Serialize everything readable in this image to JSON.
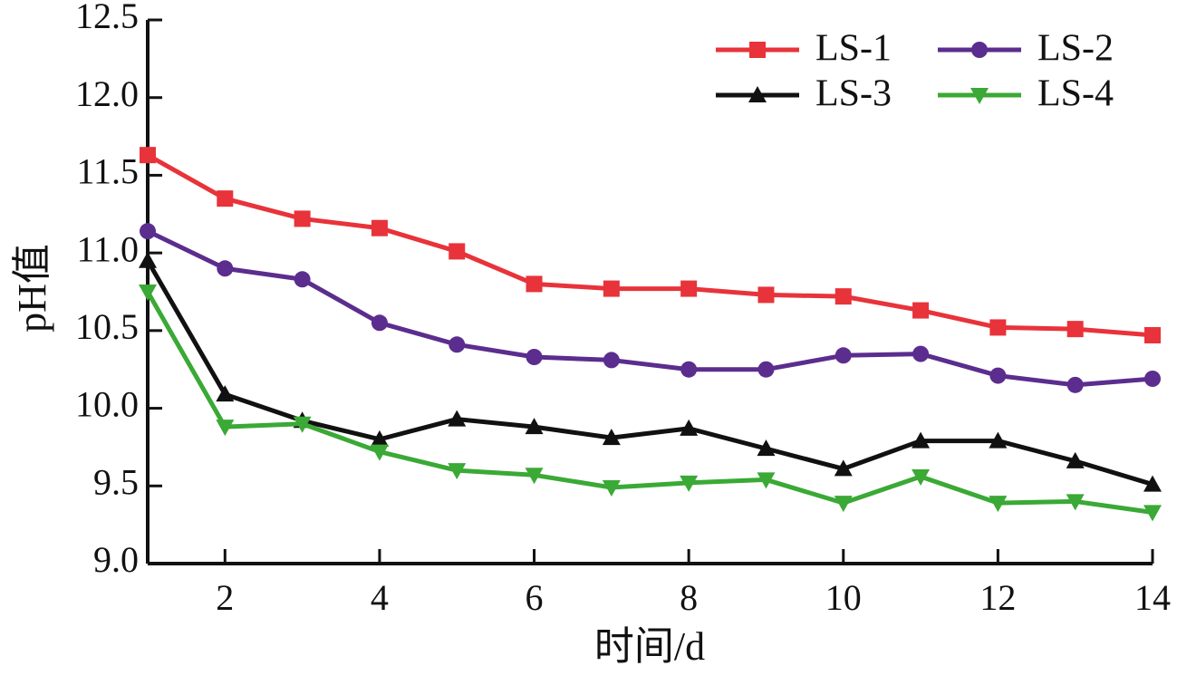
{
  "chart_data": {
    "type": "line",
    "x_label": "时间/d",
    "y_label": "pH值",
    "x": [
      1,
      2,
      3,
      4,
      5,
      6,
      7,
      8,
      9,
      10,
      11,
      12,
      13,
      14
    ],
    "xlim": [
      1,
      14
    ],
    "xticks": [
      2,
      4,
      6,
      8,
      10,
      12,
      14
    ],
    "ylim": [
      9,
      12.5
    ],
    "yticks": [
      {
        "value": 9,
        "label": "9.0"
      },
      {
        "value": 9.5,
        "label": "9.5"
      },
      {
        "value": 10,
        "label": "10.0"
      },
      {
        "value": 10.5,
        "label": "10.5"
      },
      {
        "value": 11,
        "label": "11.0"
      },
      {
        "value": 11.5,
        "label": "11.5"
      },
      {
        "value": 12,
        "label": "12.0"
      },
      {
        "value": 12.5,
        "label": "12.5"
      }
    ],
    "grid": false,
    "legend": "upper right",
    "series": [
      {
        "name": "LS-1",
        "color": "#e8333a",
        "marker": "square",
        "values": [
          11.63,
          11.35,
          11.22,
          11.16,
          11.01,
          10.8,
          10.77,
          10.77,
          10.73,
          10.72,
          10.63,
          10.52,
          10.51,
          10.47
        ]
      },
      {
        "name": "LS-2",
        "color": "#5b2d8e",
        "marker": "circle",
        "values": [
          11.14,
          10.9,
          10.83,
          10.55,
          10.41,
          10.33,
          10.31,
          10.25,
          10.25,
          10.34,
          10.35,
          10.21,
          10.15,
          10.19
        ]
      },
      {
        "name": "LS-3",
        "color": "#111111",
        "marker": "triangle-up",
        "values": [
          10.95,
          10.09,
          9.92,
          9.8,
          9.93,
          9.88,
          9.81,
          9.87,
          9.74,
          9.61,
          9.79,
          9.79,
          9.66,
          9.51
        ]
      },
      {
        "name": "LS-4",
        "color": "#3aa935",
        "marker": "triangle-down",
        "values": [
          10.75,
          9.88,
          9.9,
          9.72,
          9.6,
          9.57,
          9.49,
          9.52,
          9.54,
          9.39,
          9.56,
          9.39,
          9.4,
          9.33
        ]
      }
    ]
  }
}
